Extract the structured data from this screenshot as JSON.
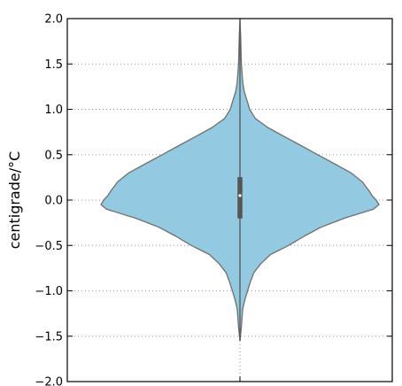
{
  "chart_data": {
    "type": "violin",
    "title": "",
    "xlabel": "",
    "ylabel": "centigrade/°C",
    "ylim": [
      -2.0,
      2.0
    ],
    "yticks": [
      -2.0,
      -1.5,
      -1.0,
      -0.5,
      0.0,
      0.5,
      1.0,
      1.5,
      2.0
    ],
    "ytick_labels": [
      "−2.0",
      "−1.5",
      "−1.0",
      "−0.5",
      "0.0",
      "0.5",
      "1.0",
      "1.5",
      "2.0"
    ],
    "grid": {
      "y": true,
      "style": "dotted"
    },
    "colors": {
      "fill": "#93CAE1",
      "edge": "#6f6f6f",
      "inner": "#555555",
      "grid": "#999999"
    },
    "violin": {
      "data_min": -1.55,
      "data_max": 2.0,
      "quartile_low": -0.2,
      "median": 0.05,
      "quartile_high": 0.25,
      "density_profile": [
        [
          2.0,
          0.0
        ],
        [
          1.8,
          0.005
        ],
        [
          1.5,
          0.01
        ],
        [
          1.3,
          0.02
        ],
        [
          1.2,
          0.03
        ],
        [
          1.1,
          0.05
        ],
        [
          1.0,
          0.07
        ],
        [
          0.9,
          0.11
        ],
        [
          0.8,
          0.2
        ],
        [
          0.7,
          0.32
        ],
        [
          0.6,
          0.44
        ],
        [
          0.5,
          0.56
        ],
        [
          0.4,
          0.68
        ],
        [
          0.3,
          0.8
        ],
        [
          0.2,
          0.88
        ],
        [
          0.1,
          0.93
        ],
        [
          0.05,
          0.95
        ],
        [
          0.0,
          0.98
        ],
        [
          -0.05,
          1.0
        ],
        [
          -0.1,
          0.96
        ],
        [
          -0.2,
          0.75
        ],
        [
          -0.3,
          0.58
        ],
        [
          -0.4,
          0.46
        ],
        [
          -0.5,
          0.35
        ],
        [
          -0.6,
          0.22
        ],
        [
          -0.7,
          0.15
        ],
        [
          -0.8,
          0.1
        ],
        [
          -0.9,
          0.075
        ],
        [
          -1.0,
          0.055
        ],
        [
          -1.1,
          0.035
        ],
        [
          -1.2,
          0.02
        ],
        [
          -1.4,
          0.01
        ],
        [
          -1.55,
          0.0
        ]
      ]
    }
  }
}
